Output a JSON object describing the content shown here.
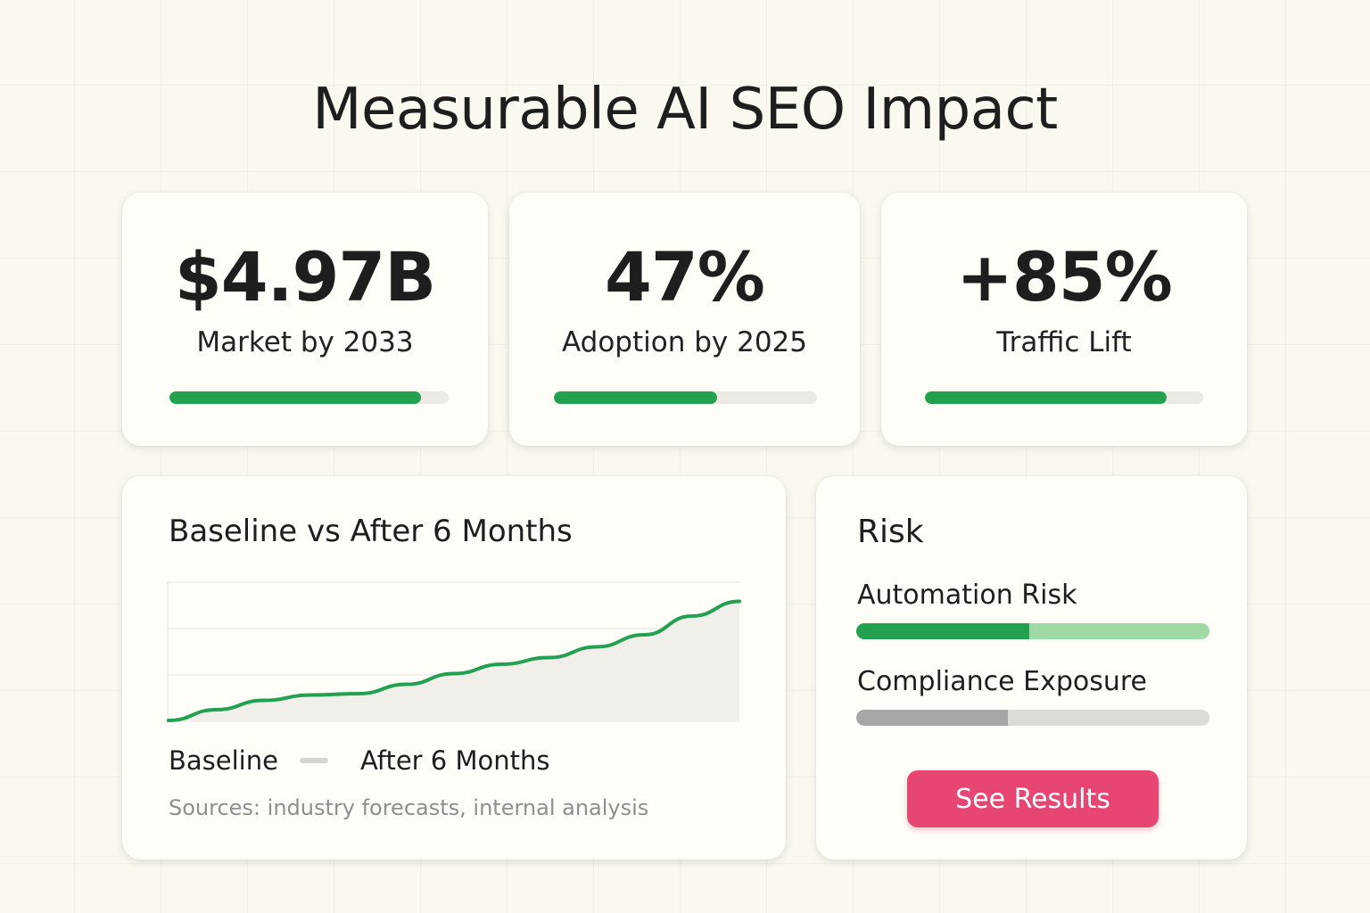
{
  "page": {
    "title": "Measurable AI SEO Impact"
  },
  "stats": [
    {
      "value": "$4.97B",
      "label": "Market by 2033",
      "progress": 0.9
    },
    {
      "value": "47%",
      "label": "Adoption by 2025",
      "progress": 0.62
    },
    {
      "value": "+85%",
      "label": "Traffic Lift",
      "progress": 0.87
    }
  ],
  "growth_card": {
    "title": "Baseline vs After 6 Months",
    "legend": {
      "baseline": "Baseline",
      "after": "After 6 Months"
    },
    "sources": "Sources: industry forecasts, internal analysis"
  },
  "chart_data": {
    "type": "area",
    "title": "Baseline vs After 6 Months",
    "xlabel": "",
    "ylabel": "",
    "x": [
      0,
      1,
      2,
      3,
      4,
      5,
      6,
      7,
      8,
      9,
      10,
      11,
      12
    ],
    "series": [
      {
        "name": "After 6 Months",
        "values": [
          0.0,
          0.08,
          0.15,
          0.19,
          0.2,
          0.27,
          0.35,
          0.42,
          0.47,
          0.55,
          0.64,
          0.78,
          0.89
        ]
      }
    ],
    "ylim": [
      0,
      1
    ],
    "grid": true,
    "legend": "bottom-left",
    "colors": {
      "line": "#23a052",
      "area": "#f0efe9",
      "grid": "#e4e3dc"
    }
  },
  "risk_card": {
    "title": "Risk",
    "items": [
      {
        "label": "Automation Risk",
        "progress": 0.49,
        "fill_color": "#22a24f",
        "track_color": "#9fd9a5"
      },
      {
        "label": "Compliance Exposure",
        "progress": 0.43,
        "fill_color": "#a5a7a4",
        "track_color": "#dcdcd7"
      }
    ],
    "button_label": "See Results"
  },
  "colors": {
    "accent": "#22a24f",
    "button": "#e84672",
    "background": "#faf8ef"
  }
}
